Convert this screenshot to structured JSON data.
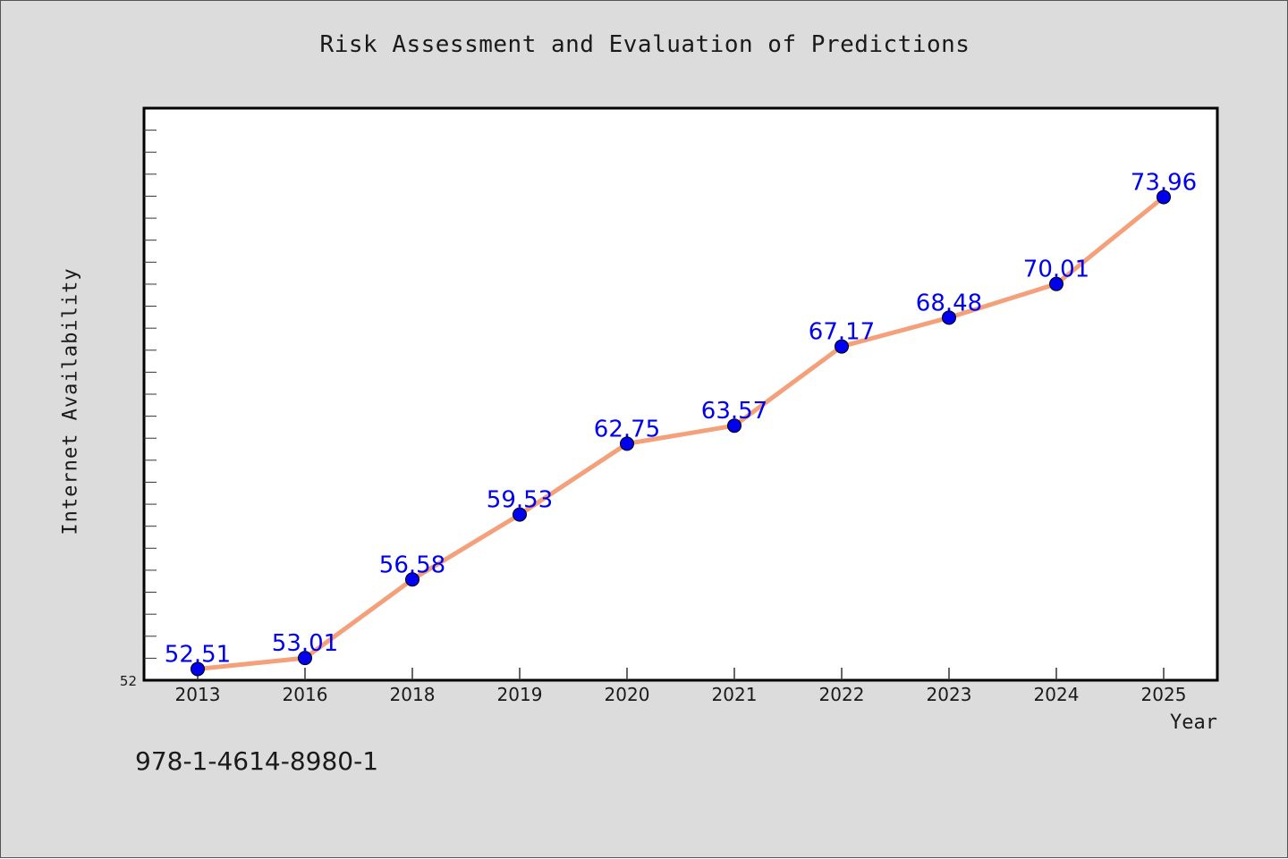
{
  "chart_data": {
    "type": "line",
    "title": "Risk Assessment and Evaluation of Predictions",
    "xlabel": "Year",
    "ylabel": "Internet Availability",
    "categories": [
      "2013",
      "2016",
      "2018",
      "2019",
      "2020",
      "2021",
      "2022",
      "2023",
      "2024",
      "2025"
    ],
    "series": [
      {
        "values": [
          52.51,
          53.01,
          56.58,
          59.53,
          62.75,
          63.57,
          67.17,
          68.48,
          70.01,
          73.96
        ],
        "data_labels": [
          "52.51",
          "53.01",
          "56.58",
          "59.53",
          "62.75",
          "63.57",
          "67.17",
          "68.48",
          "70.01",
          "73.96"
        ]
      }
    ],
    "ylim": [
      52,
      78
    ],
    "y_tick_labels": [
      "52"
    ],
    "y_minor_step": 1,
    "grid": false,
    "legend": "none",
    "line_color": "#f4a07a",
    "marker_color": "#0000ee",
    "label_color": "#0000ee"
  },
  "footnote": "978-1-4614-8980-1"
}
